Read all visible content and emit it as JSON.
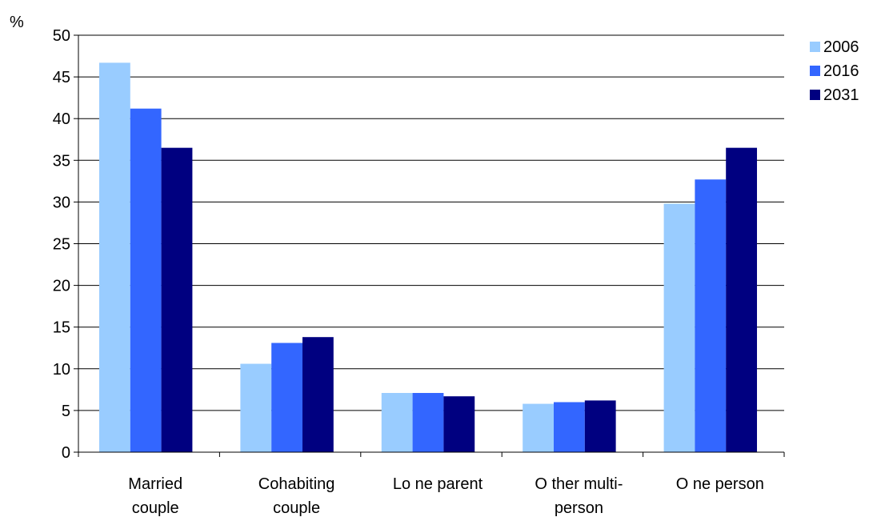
{
  "chart_data": {
    "type": "bar",
    "ylabel": "%",
    "ylim": [
      0,
      50
    ],
    "ytick_step": 5,
    "grid": true,
    "legend_position": "right-top",
    "categories": [
      [
        "Married",
        "couple"
      ],
      [
        "Cohabiting",
        "couple"
      ],
      [
        "Lo ne parent"
      ],
      [
        "O ther multi-",
        "person"
      ],
      [
        "O ne person"
      ]
    ],
    "series": [
      {
        "name": "2006",
        "color": "#99ccff",
        "values": [
          46.7,
          10.6,
          7.1,
          5.8,
          29.8
        ]
      },
      {
        "name": "2016",
        "color": "#3366ff",
        "values": [
          41.2,
          13.1,
          7.1,
          6.0,
          32.7
        ]
      },
      {
        "name": "2031",
        "color": "#000080",
        "values": [
          36.5,
          13.8,
          6.7,
          6.2,
          36.5
        ]
      }
    ]
  }
}
